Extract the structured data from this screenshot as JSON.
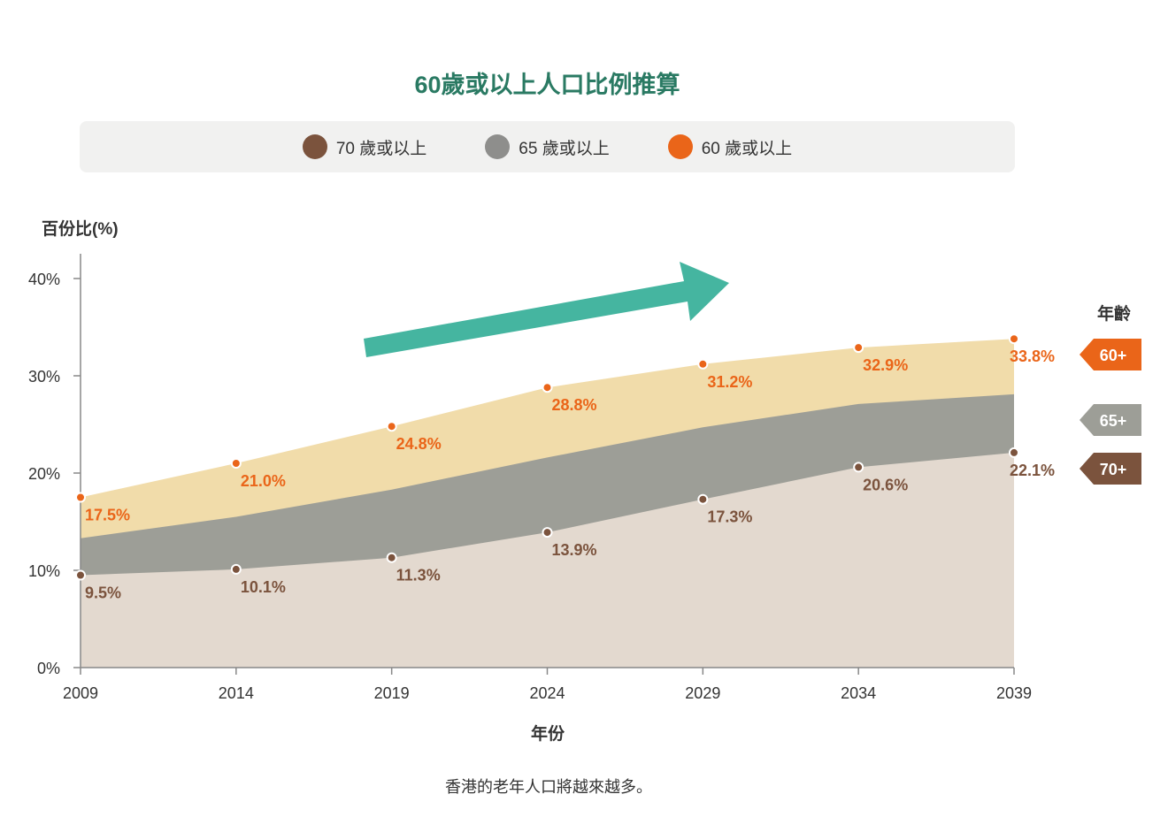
{
  "title": "60歲或以上人口比例推算",
  "legend": [
    {
      "label": "70 歲或以上",
      "color": "#7b533d"
    },
    {
      "label": "65 歲或以上",
      "color": "#8e8e8c"
    },
    {
      "label": "60 歲或以上",
      "color": "#ea6519"
    }
  ],
  "caption": "香港的老年人口將越來越多。",
  "chart_data": {
    "type": "area",
    "ylabel": "百份比(%)",
    "xlabel": "年份",
    "x": [
      2009,
      2014,
      2019,
      2024,
      2029,
      2034,
      2039
    ],
    "x_ticks": [
      "2009",
      "2014",
      "2019",
      "2024",
      "2029",
      "2034",
      "2039"
    ],
    "ylim": [
      0,
      40
    ],
    "y_ticks": [
      "0%",
      "10%",
      "20%",
      "30%",
      "40%"
    ],
    "series": [
      {
        "name": "60+",
        "values": [
          17.5,
          21.0,
          24.8,
          28.8,
          31.2,
          32.9,
          33.8
        ],
        "labels": [
          "17.5%",
          "21.0%",
          "24.8%",
          "28.8%",
          "31.2%",
          "32.9%",
          "33.8%"
        ],
        "fill": "#f1dcaa",
        "color": "#ea6519"
      },
      {
        "name": "65+",
        "values": [
          13.3,
          15.5,
          18.3,
          21.6,
          24.7,
          27.1,
          28.1
        ],
        "fill": "#9d9e97",
        "color": "#8e8e8c"
      },
      {
        "name": "70+",
        "values": [
          9.5,
          10.1,
          11.3,
          13.9,
          17.3,
          20.6,
          22.1
        ],
        "labels": [
          "9.5%",
          "10.1%",
          "11.3%",
          "13.9%",
          "17.3%",
          "20.6%",
          "22.1%"
        ],
        "fill": "#e3d9cf",
        "color": "#7b533d"
      }
    ],
    "side_legend": {
      "title": "年齡",
      "items": [
        {
          "label": "60+",
          "color": "#ea6519"
        },
        {
          "label": "65+",
          "color": "#9d9e97"
        },
        {
          "label": "70+",
          "color": "#7b533d"
        }
      ]
    },
    "annotation": {
      "type": "trend-arrow",
      "color": "#45b5a0",
      "direction": "up-right"
    },
    "grid": false
  }
}
